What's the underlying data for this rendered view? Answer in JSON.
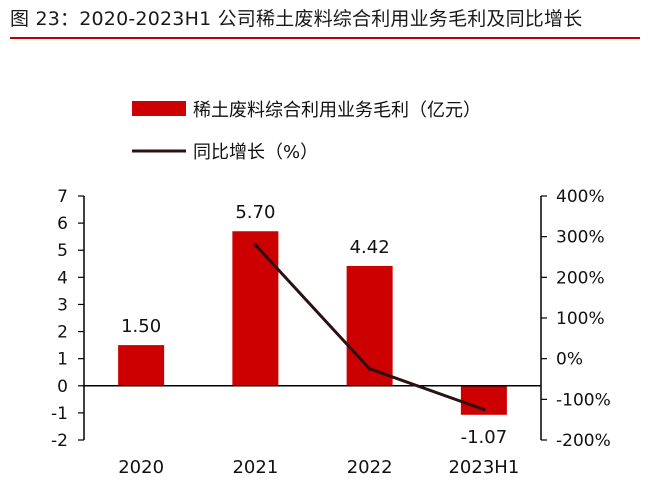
{
  "figure": {
    "title": "图 23：2020-2023H1 公司稀土废料综合利用业务毛利及同比增长"
  },
  "colors": {
    "bar": "#cc0000",
    "line": "#2a1212",
    "rule": "#c00000",
    "axis": "#000000"
  },
  "chart_data": {
    "type": "bar",
    "categories": [
      "2020",
      "2021",
      "2022",
      "2023H1"
    ],
    "series": [
      {
        "name": "稀土废料综合利用业务毛利（亿元）",
        "type": "bar",
        "axis": "left",
        "values": [
          1.5,
          5.7,
          4.42,
          -1.07
        ],
        "labels": [
          "1.50",
          "5.70",
          "4.42",
          "-1.07"
        ]
      },
      {
        "name": "同比增长（%）",
        "type": "line",
        "axis": "right",
        "values": [
          null,
          280,
          -25,
          -125
        ]
      }
    ],
    "left_axis": {
      "ylim": [
        -2,
        7
      ],
      "ticks": [
        -2,
        -1,
        0,
        1,
        2,
        3,
        4,
        5,
        6,
        7
      ],
      "tick_labels": [
        "-2",
        "-1",
        "0",
        "1",
        "2",
        "3",
        "4",
        "5",
        "6",
        "7"
      ]
    },
    "right_axis": {
      "ylim": [
        -200,
        400
      ],
      "ticks": [
        -200,
        -100,
        0,
        100,
        200,
        300,
        400
      ],
      "tick_labels": [
        "-200%",
        "-100%",
        "0%",
        "100%",
        "200%",
        "300%",
        "400%"
      ]
    },
    "legend": {
      "placement": "top-left"
    },
    "grid": false
  }
}
